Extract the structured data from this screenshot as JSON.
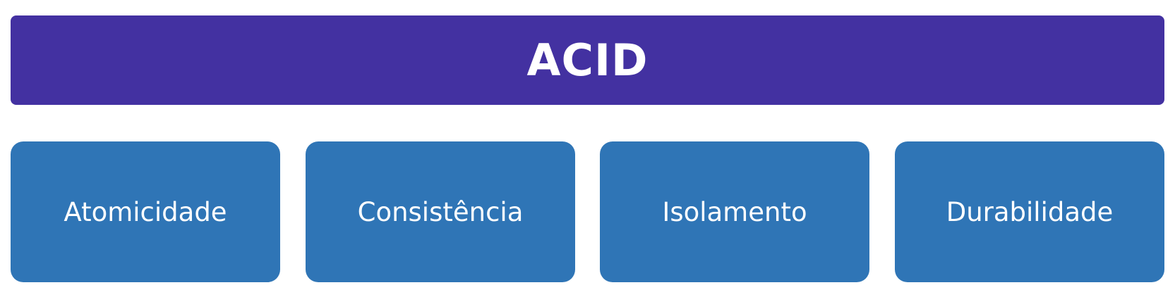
{
  "diagram": {
    "title": "ACID",
    "properties": [
      {
        "label": "Atomicidade"
      },
      {
        "label": "Consistência"
      },
      {
        "label": "Isolamento"
      },
      {
        "label": "Durabilidade"
      }
    ]
  },
  "colors": {
    "header_bg": "#4331a1",
    "box_bg": "#2f75b6",
    "text": "#ffffff"
  }
}
